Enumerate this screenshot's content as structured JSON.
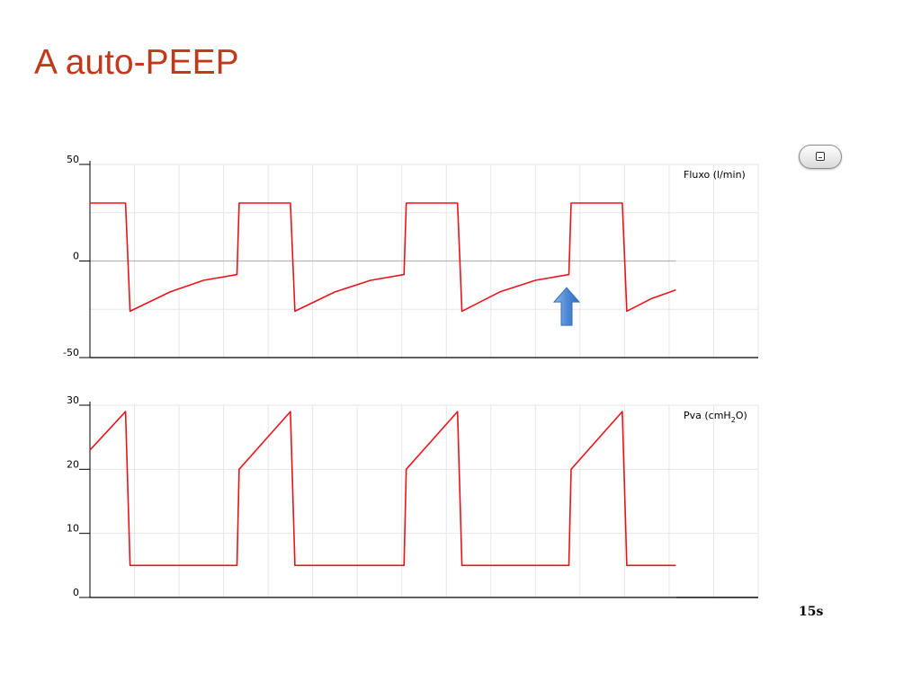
{
  "slide": {
    "title": "A auto-PEEP"
  },
  "toolbar": {
    "minimize_icon": "minimize-icon"
  },
  "colors": {
    "title": "#c0391b",
    "trace": "#e8141c",
    "grid": "#e6e6e6",
    "zero_line": "#b5b5b5",
    "arrow": "#4a86d4"
  },
  "chart_data": [
    {
      "type": "line",
      "label_text": "Fluxo (l/min)",
      "ylim": [
        -50,
        50
      ],
      "yticks": [
        "50",
        "0",
        "-50"
      ],
      "grid": true,
      "series": [
        {
          "x": [
            0,
            0.8,
            0.9,
            1.8,
            2.55,
            3.3,
            3.35,
            4.5,
            4.6,
            5.5,
            6.3,
            7.05,
            7.1,
            8.25,
            8.35,
            9.2,
            10.0,
            10.75,
            10.8,
            11.95,
            12.05,
            12.6,
            13.15
          ],
          "y": [
            30,
            30,
            -26,
            -16,
            -10,
            -7,
            30,
            30,
            -26,
            -16,
            -10,
            -7,
            30,
            30,
            -26,
            -16,
            -10,
            -7,
            30,
            30,
            -26,
            -19.5,
            -15
          ]
        }
      ],
      "annotations": [
        {
          "type": "arrow",
          "x": 10.7,
          "y": -11,
          "direction": "up"
        }
      ]
    },
    {
      "type": "line",
      "label_main": "Pva (cmH",
      "label_sub": "2",
      "label_end": "O)",
      "ylim": [
        0,
        30
      ],
      "yticks": [
        "30",
        "20",
        "10",
        "0"
      ],
      "grid": true,
      "series": [
        {
          "x": [
            0,
            0.8,
            0.9,
            3.3,
            3.35,
            4.5,
            4.6,
            7.05,
            7.1,
            8.25,
            8.35,
            10.75,
            10.8,
            11.95,
            12.05,
            13.15
          ],
          "y": [
            23,
            29,
            5,
            5,
            20,
            29,
            5,
            5,
            20,
            29,
            5,
            5,
            20,
            29,
            5,
            5
          ]
        }
      ]
    }
  ],
  "time_scale": {
    "label": "15s"
  }
}
